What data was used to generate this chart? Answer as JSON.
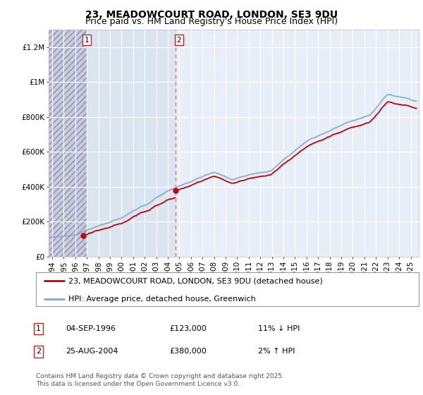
{
  "title": "23, MEADOWCOURT ROAD, LONDON, SE3 9DU",
  "subtitle": "Price paid vs. HM Land Registry's House Price Index (HPI)",
  "ylim": [
    0,
    1300000
  ],
  "xlim_start": 1993.7,
  "xlim_end": 2025.7,
  "yticks": [
    0,
    200000,
    400000,
    600000,
    800000,
    1000000,
    1200000
  ],
  "ytick_labels": [
    "£0",
    "£200K",
    "£400K",
    "£600K",
    "£800K",
    "£1M",
    "£1.2M"
  ],
  "background_color": "#ffffff",
  "plot_bg_color": "#e8eef8",
  "hatched_end": 1997.0,
  "light_fill_end": 2004.65,
  "purchase1_x": 1996.67,
  "purchase1_y": 123000,
  "purchase1_label": "1",
  "purchase2_x": 2004.65,
  "purchase2_y": 380000,
  "purchase2_label": "2",
  "legend_line1": "23, MEADOWCOURT ROAD, LONDON, SE3 9DU (detached house)",
  "legend_line2": "HPI: Average price, detached house, Greenwich",
  "table_row1": [
    "1",
    "04-SEP-1996",
    "£123,000",
    "11% ↓ HPI"
  ],
  "table_row2": [
    "2",
    "25-AUG-2004",
    "£380,000",
    "2% ↑ HPI"
  ],
  "footer": "Contains HM Land Registry data © Crown copyright and database right 2025.\nThis data is licensed under the Open Government Licence v3.0.",
  "price_color": "#cc0000",
  "hpi_color": "#7aaad0",
  "dashed1_color": "#aaaaaa",
  "dashed2_color": "#ff6666",
  "grid_color": "#ffffff",
  "title_fontsize": 10,
  "subtitle_fontsize": 9,
  "tick_fontsize": 7.5,
  "legend_fontsize": 8,
  "table_fontsize": 8,
  "footer_fontsize": 6.5
}
